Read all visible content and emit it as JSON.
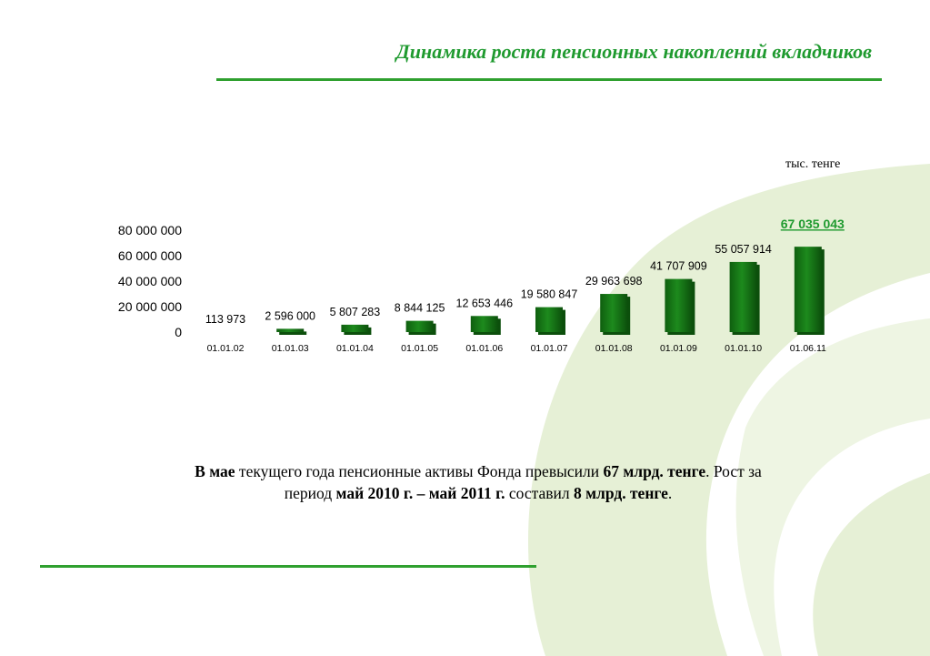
{
  "title": "Динамика роста пенсионных накоплений вкладчиков",
  "unit_label": "тыс. тенге",
  "colors": {
    "accent": "#2fa02f",
    "title": "#1f9a2f",
    "bar": "#1d8a1d",
    "bar_dark": "#0c4f0c",
    "highlight": "#1f9a2f",
    "background_logo": "#e6f0d6"
  },
  "chart_data": {
    "type": "bar",
    "title": "",
    "xlabel": "",
    "ylabel": "",
    "ylim": [
      0,
      80000000
    ],
    "yticks": [
      0,
      20000000,
      40000000,
      60000000,
      80000000
    ],
    "ytick_labels": [
      "0",
      "20 000 000",
      "40 000 000",
      "60 000 000",
      "80 000 000"
    ],
    "grid": false,
    "categories": [
      "01.01.02",
      "01.01.03",
      "01.01.04",
      "01.01.05",
      "01.01.06",
      "01.01.07",
      "01.01.08",
      "01.01.09",
      "01.01.10",
      "01.06.11"
    ],
    "values": [
      113973,
      2596000,
      5807283,
      8844125,
      12653446,
      19580847,
      29963698,
      41707909,
      55057914,
      67035043
    ],
    "data_labels": [
      "113 973",
      "2 596 000",
      "5 807 283",
      "8 844 125",
      "12 653 446",
      "19 580 847",
      "29 963 698",
      "41 707 909",
      "55 057 914",
      "67 035 043"
    ],
    "highlight_index": 9
  },
  "caption": {
    "line1": [
      {
        "text": "В мае",
        "bold": true
      },
      {
        "text": " текущего года пенсионные активы Фонда превысили ",
        "bold": false
      },
      {
        "text": "67 млрд. тенге",
        "bold": true
      },
      {
        "text": ". Рост за",
        "bold": false
      }
    ],
    "line2": [
      {
        "text": "период ",
        "bold": false
      },
      {
        "text": "май  2010 г. – май 2011 г.",
        "bold": true
      },
      {
        "text": " составил ",
        "bold": false
      },
      {
        "text": "8 млрд. тенге",
        "bold": true
      },
      {
        "text": ".",
        "bold": false
      }
    ]
  }
}
